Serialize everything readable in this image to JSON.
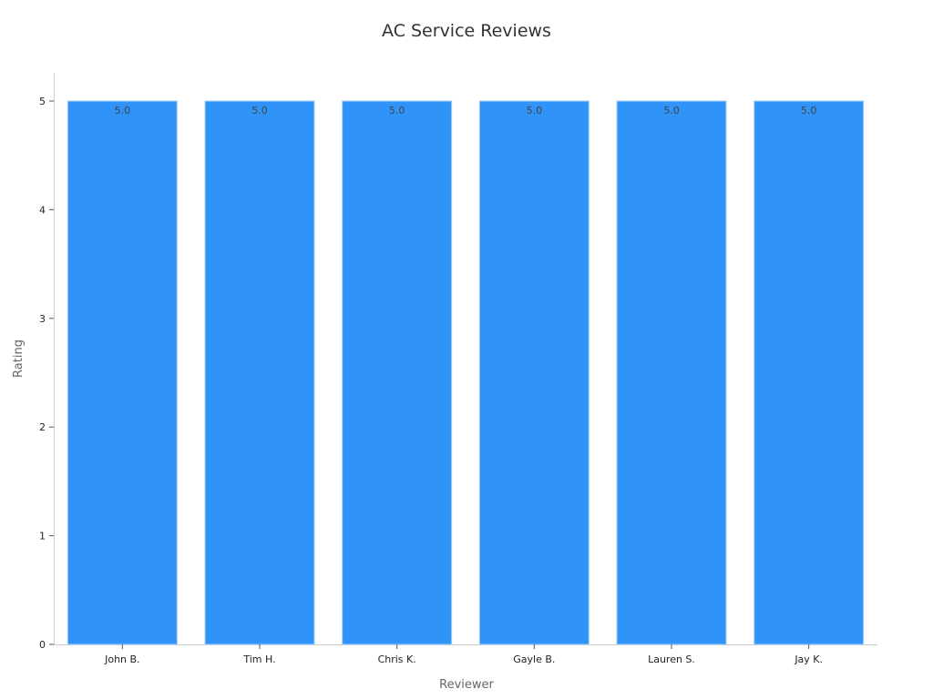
{
  "chart_data": {
    "type": "bar",
    "title": "AC Service Reviews",
    "xlabel": "Reviewer",
    "ylabel": "Rating",
    "categories": [
      "John B.",
      "Tim H.",
      "Chris K.",
      "Gayle B.",
      "Lauren S.",
      "Jay K."
    ],
    "values": [
      5.0,
      5.0,
      5.0,
      5.0,
      5.0,
      5.0
    ],
    "data_labels": [
      "5.0",
      "5.0",
      "5.0",
      "5.0",
      "5.0",
      "5.0"
    ],
    "ylim": [
      0,
      5
    ],
    "yticks": [
      "0",
      "1",
      "2",
      "3",
      "4",
      "5"
    ],
    "grid": false,
    "bar_color": "#2F93F8",
    "bar_edge_color": "#A8D0F8"
  }
}
